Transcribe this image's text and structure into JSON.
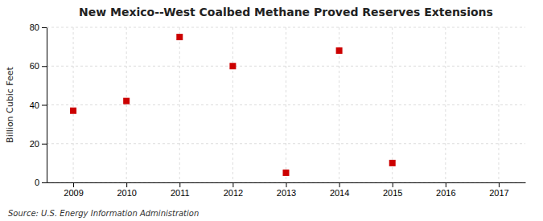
{
  "chart_data": {
    "type": "scatter",
    "title": "New Mexico--West Coalbed Methane Proved Reserves Extensions",
    "ylabel": "Billion Cubic Feet",
    "source": "Source: U.S. Energy Information Administration",
    "x": [
      2009,
      2010,
      2011,
      2012,
      2013,
      2014,
      2015
    ],
    "values": [
      37.0,
      42.0,
      75.0,
      60.0,
      5.0,
      68.0,
      10.0
    ],
    "color": "#cc0000",
    "marker": "square",
    "xlim": [
      2008.5,
      2017.5
    ],
    "xticks": [
      2009,
      2010,
      2011,
      2012,
      2013,
      2014,
      2015,
      2016,
      2017
    ],
    "ylim": [
      0,
      80
    ],
    "yticks": [
      0,
      20,
      40,
      60,
      80
    ],
    "grid": true
  }
}
